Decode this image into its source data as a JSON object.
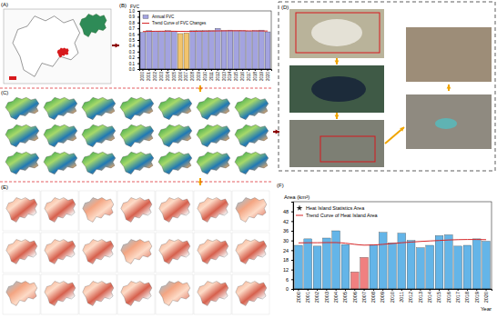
{
  "chart_data": [
    {
      "type": "bar",
      "y_label": "FVC",
      "categories": [
        "2000",
        "2001",
        "2002",
        "2003",
        "2004",
        "2005",
        "2006",
        "2007",
        "2008",
        "2009",
        "2010",
        "2011",
        "2012",
        "2013",
        "2014",
        "2015",
        "2016",
        "2017",
        "2018",
        "2019",
        "2020"
      ],
      "series": [
        {
          "name": "Annual FVC",
          "type": "bar",
          "colors": [
            "#a3a3e0",
            "#a3a3e0",
            "#a3a3e0",
            "#a3a3e0",
            "#a3a3e0",
            "#a3a3e0",
            "#f2c46d",
            "#f2c46d",
            "#a3a3e0",
            "#a3a3e0",
            "#a3a3e0",
            "#a3a3e0",
            "#a3a3e0",
            "#a3a3e0",
            "#a3a3e0",
            "#a3a3e0",
            "#a3a3e0",
            "#a3a3e0",
            "#a3a3e0",
            "#a3a3e0",
            "#a3a3e0"
          ],
          "values": [
            0.63,
            0.66,
            0.65,
            0.65,
            0.66,
            0.65,
            0.61,
            0.62,
            0.66,
            0.66,
            0.66,
            0.66,
            0.7,
            0.66,
            0.67,
            0.66,
            0.66,
            0.65,
            0.66,
            0.67,
            0.64
          ]
        },
        {
          "name": "Trend Curve of FVC Changes",
          "type": "line",
          "color": "#d62728",
          "line_style": "solid",
          "values": [
            0.645,
            0.648,
            0.65,
            0.651,
            0.651,
            0.65,
            0.648,
            0.647,
            0.648,
            0.65,
            0.652,
            0.654,
            0.656,
            0.657,
            0.658,
            0.658,
            0.658,
            0.657,
            0.656,
            0.655,
            0.654
          ]
        }
      ],
      "ylim": [
        0,
        1
      ],
      "yticks": [
        {
          "value": 0,
          "label": "0.0"
        },
        0.1,
        0.2,
        0.3,
        0.4,
        0.5,
        0.6,
        0.7,
        0.8,
        0.9,
        {
          "value": 1,
          "label": "1.0"
        }
      ],
      "grid": false,
      "legend": "upper left"
    },
    {
      "type": "bar",
      "x_label": "Year",
      "y_label": "Area (km²)",
      "categories": [
        "2000",
        "2001",
        "2002",
        "2003",
        "2004",
        "2005",
        "2006",
        "2007",
        "2008",
        "2009",
        "2010",
        "2011",
        "2012",
        "2013",
        "2014",
        "2015",
        "2016",
        "2017",
        "2018",
        "2019",
        "2020"
      ],
      "series": [
        {
          "name": "Heat Island Statistics Area",
          "type": "bar",
          "marker": "star",
          "colors": [
            "#64b5e8",
            "#64b5e8",
            "#64b5e8",
            "#64b5e8",
            "#64b5e8",
            "#64b5e8",
            "#f08080",
            "#f08080",
            "#64b5e8",
            "#64b5e8",
            "#64b5e8",
            "#64b5e8",
            "#64b5e8",
            "#64b5e8",
            "#64b5e8",
            "#64b5e8",
            "#64b5e8",
            "#64b5e8",
            "#64b5e8",
            "#64b5e8",
            "#64b5e8"
          ],
          "values": [
            27,
            31,
            26.5,
            31.5,
            36,
            27.5,
            10.5,
            19.5,
            27.5,
            35,
            28.5,
            34.5,
            30,
            25.5,
            27,
            33,
            33.5,
            26.5,
            27,
            31,
            29.5
          ]
        },
        {
          "name": "Trend Curve of Heat Island Area",
          "type": "line",
          "color": "#d62728",
          "line_style": "solid",
          "values": [
            28.5,
            28.6,
            28.6,
            28.7,
            28.7,
            28.3,
            27.6,
            27.1,
            27.2,
            27.6,
            28.1,
            28.6,
            29,
            29.4,
            29.7,
            30,
            30.3,
            30.5,
            30.6,
            30.6,
            30.5
          ]
        }
      ],
      "ylim": [
        0,
        54
      ],
      "yticks": [
        0,
        6,
        12,
        18,
        24,
        30,
        36,
        42,
        48
      ],
      "grid": false,
      "legend": "upper left"
    }
  ],
  "panel_labels": [
    "(A)",
    "(B)",
    "(C)",
    "(D)",
    "(E)",
    "(F)"
  ]
}
